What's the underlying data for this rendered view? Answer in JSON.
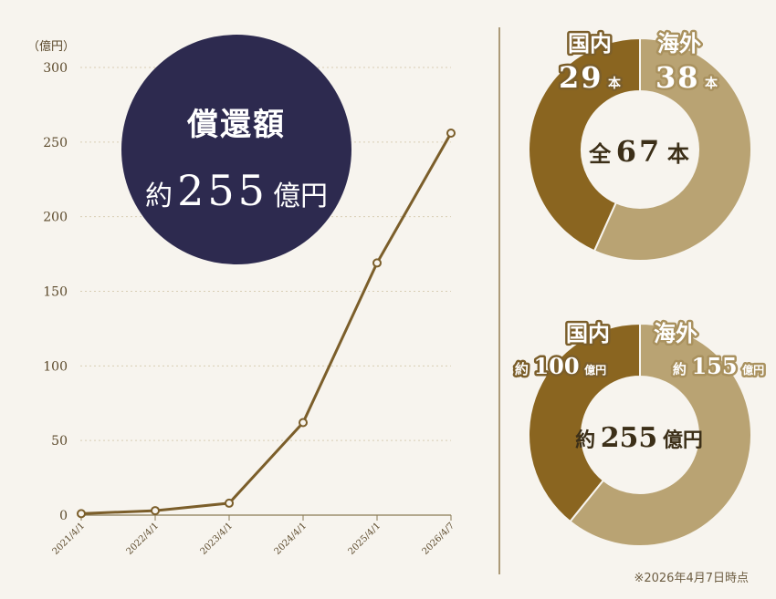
{
  "colors": {
    "background": "#f7f4ee",
    "line": "#7b5e2a",
    "axis_text": "#5c4a2c",
    "gridline": "#d8cdb4",
    "domestic": "#8a6520",
    "overseas": "#b9a373",
    "navy": "#2d2a4f",
    "white": "#ffffff"
  },
  "chart_data": [
    {
      "type": "line",
      "ylabel": "（億円）",
      "ylim": [
        0,
        300
      ],
      "yticks": [
        "0",
        "50",
        "100",
        "150",
        "200",
        "250",
        "300"
      ],
      "categories": [
        "2021/4/1",
        "2022/4/1",
        "2023/4/1",
        "2024/4/1",
        "2025/4/1",
        "2026/4/7"
      ],
      "values": [
        1,
        3,
        8,
        62,
        169,
        256
      ],
      "grid": true,
      "annotation": {
        "title": "償還額",
        "prefix": "約",
        "value": "255",
        "unit": "億円"
      }
    },
    {
      "type": "pie",
      "donut": true,
      "center_prefix": "全",
      "center_value": "67",
      "center_unit": "本",
      "slices": [
        {
          "label": "国内",
          "value": 29,
          "display": "29",
          "unit": "本",
          "color": "#8a6520"
        },
        {
          "label": "海外",
          "value": 38,
          "display": "38",
          "unit": "本",
          "color": "#b9a373"
        }
      ]
    },
    {
      "type": "pie",
      "donut": true,
      "center_prefix": "約",
      "center_value": "255",
      "center_unit": "億円",
      "slices": [
        {
          "label": "国内",
          "value": 100,
          "prefix": "約",
          "display": "100",
          "unit": "億円",
          "color": "#8a6520"
        },
        {
          "label": "海外",
          "value": 155,
          "prefix": "約",
          "display": "155",
          "unit": "億円",
          "color": "#b9a373"
        }
      ]
    }
  ],
  "footnote": "※2026年4月7日時点"
}
